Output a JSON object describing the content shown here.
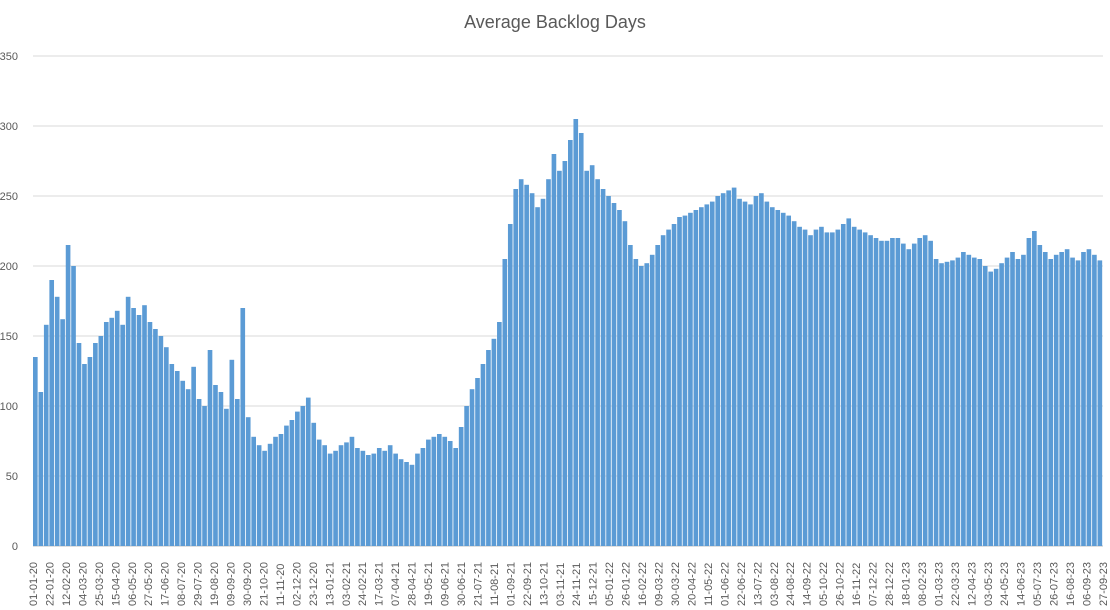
{
  "chart_data": {
    "type": "bar",
    "title": "Average Backlog Days",
    "xlabel": "",
    "ylabel": "",
    "ylim": [
      0,
      350
    ],
    "yticks": [
      0,
      50,
      100,
      150,
      200,
      250,
      300,
      350
    ],
    "grid": true,
    "legend": "none",
    "bar_color": "#5b9bd5",
    "x_start": "2020-01-01",
    "x_end": "2023-09-28",
    "xtick_labels": [
      "01-01-20",
      "22-01-20",
      "12-02-20",
      "04-03-20",
      "25-03-20",
      "15-04-20",
      "06-05-20",
      "27-05-20",
      "17-06-20",
      "08-07-20",
      "29-07-20",
      "19-08-20",
      "09-09-20",
      "30-09-20",
      "21-10-20",
      "11-11-20",
      "02-12-20",
      "23-12-20",
      "13-01-21",
      "03-02-21",
      "24-02-21",
      "17-03-21",
      "07-04-21",
      "28-04-21",
      "19-05-21",
      "09-06-21",
      "30-06-21",
      "21-07-21",
      "11-08-21",
      "01-09-21",
      "22-09-21",
      "13-10-21",
      "03-11-21",
      "24-11-21",
      "15-12-21",
      "05-01-22",
      "26-01-22",
      "16-02-22",
      "09-03-22",
      "30-03-22",
      "20-04-22",
      "11-05-22",
      "01-06-22",
      "22-06-22",
      "13-07-22",
      "03-08-22",
      "24-08-22",
      "14-09-22",
      "05-10-22",
      "26-10-22",
      "16-11-22",
      "07-12-22",
      "28-12-22",
      "18-01-23",
      "08-02-23",
      "01-03-23",
      "22-03-23",
      "12-04-23",
      "03-05-23",
      "24-05-23",
      "14-06-23",
      "05-07-23",
      "26-07-23",
      "16-08-23",
      "06-09-23",
      "27-09-23"
    ],
    "series": [
      {
        "values": [
          135,
          110,
          158,
          190,
          178,
          162,
          215,
          200,
          145,
          130,
          135,
          145,
          150,
          160,
          163,
          168,
          158,
          178,
          170,
          165,
          172,
          160,
          155,
          150,
          142,
          130,
          125,
          118,
          112,
          128,
          105,
          100,
          140,
          115,
          110,
          98,
          133,
          105,
          170,
          92,
          78,
          72,
          68,
          73,
          78,
          80,
          86,
          90,
          96,
          100,
          106,
          88,
          76,
          72,
          66,
          68,
          72,
          74,
          78,
          70,
          68,
          65,
          66,
          70,
          68,
          72,
          66,
          62,
          60,
          58,
          66,
          70,
          76,
          78,
          80,
          78,
          75,
          70,
          85,
          100,
          112,
          120,
          130,
          140,
          148,
          160,
          205,
          230,
          255,
          262,
          258,
          252,
          242,
          248,
          262,
          280,
          268,
          275,
          290,
          305,
          295,
          268,
          272,
          262,
          255,
          250,
          245,
          240,
          232,
          215,
          205,
          200,
          202,
          208,
          215,
          222,
          226,
          230,
          235,
          236,
          238,
          240,
          242,
          244,
          246,
          250,
          252,
          254,
          256,
          248,
          246,
          244,
          250,
          252,
          246,
          242,
          240,
          238,
          236,
          232,
          228,
          226,
          222,
          226,
          228,
          224,
          224,
          226,
          230,
          234,
          228,
          226,
          224,
          222,
          220,
          218,
          218,
          220,
          220,
          216,
          212,
          216,
          220,
          222,
          218,
          205,
          202,
          203,
          204,
          206,
          210,
          208,
          206,
          205,
          200,
          196,
          198,
          202,
          206,
          210,
          205,
          208,
          220,
          225,
          215,
          210,
          205,
          208,
          210,
          212,
          206,
          204,
          210,
          212,
          208,
          204
        ]
      }
    ]
  }
}
